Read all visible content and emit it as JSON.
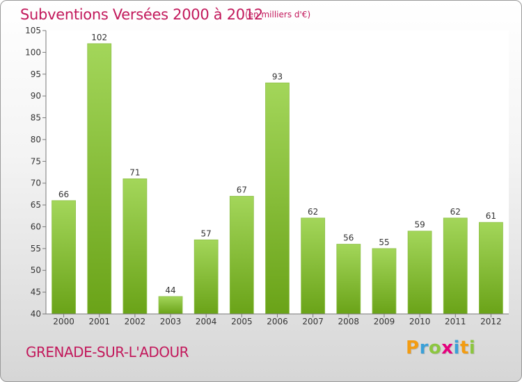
{
  "header": {
    "title": "Subventions Versées 2000 à 2012",
    "subtitle": "(en milliers d'€)"
  },
  "footer": {
    "city": "GRENADE-SUR-L'ADOUR",
    "logo_letters": [
      "P",
      "r",
      "o",
      "x",
      "i",
      "t",
      "i"
    ],
    "logo_colors": [
      "#f39c12",
      "#3aa0d8",
      "#8cc63f",
      "#e5007d",
      "#3aa0d8",
      "#f39c12",
      "#8cc63f"
    ]
  },
  "colors": {
    "bar_top": "#a3d65a",
    "bar_bottom": "#6aa318",
    "title": "#c2185b"
  },
  "chart_data": {
    "type": "bar",
    "title": "Subventions Versées 2000 à 2012",
    "subtitle": "(en milliers d'€)",
    "categories": [
      "2000",
      "2001",
      "2002",
      "2003",
      "2004",
      "2005",
      "2006",
      "2007",
      "2008",
      "2009",
      "2010",
      "2011",
      "2012"
    ],
    "values": [
      66,
      102,
      71,
      44,
      57,
      67,
      93,
      62,
      56,
      55,
      59,
      62,
      61
    ],
    "ylim": [
      40,
      105
    ],
    "yticks": [
      40,
      45,
      50,
      55,
      60,
      65,
      70,
      75,
      80,
      85,
      90,
      95,
      100,
      105
    ],
    "grid": false,
    "data_labels": true
  }
}
